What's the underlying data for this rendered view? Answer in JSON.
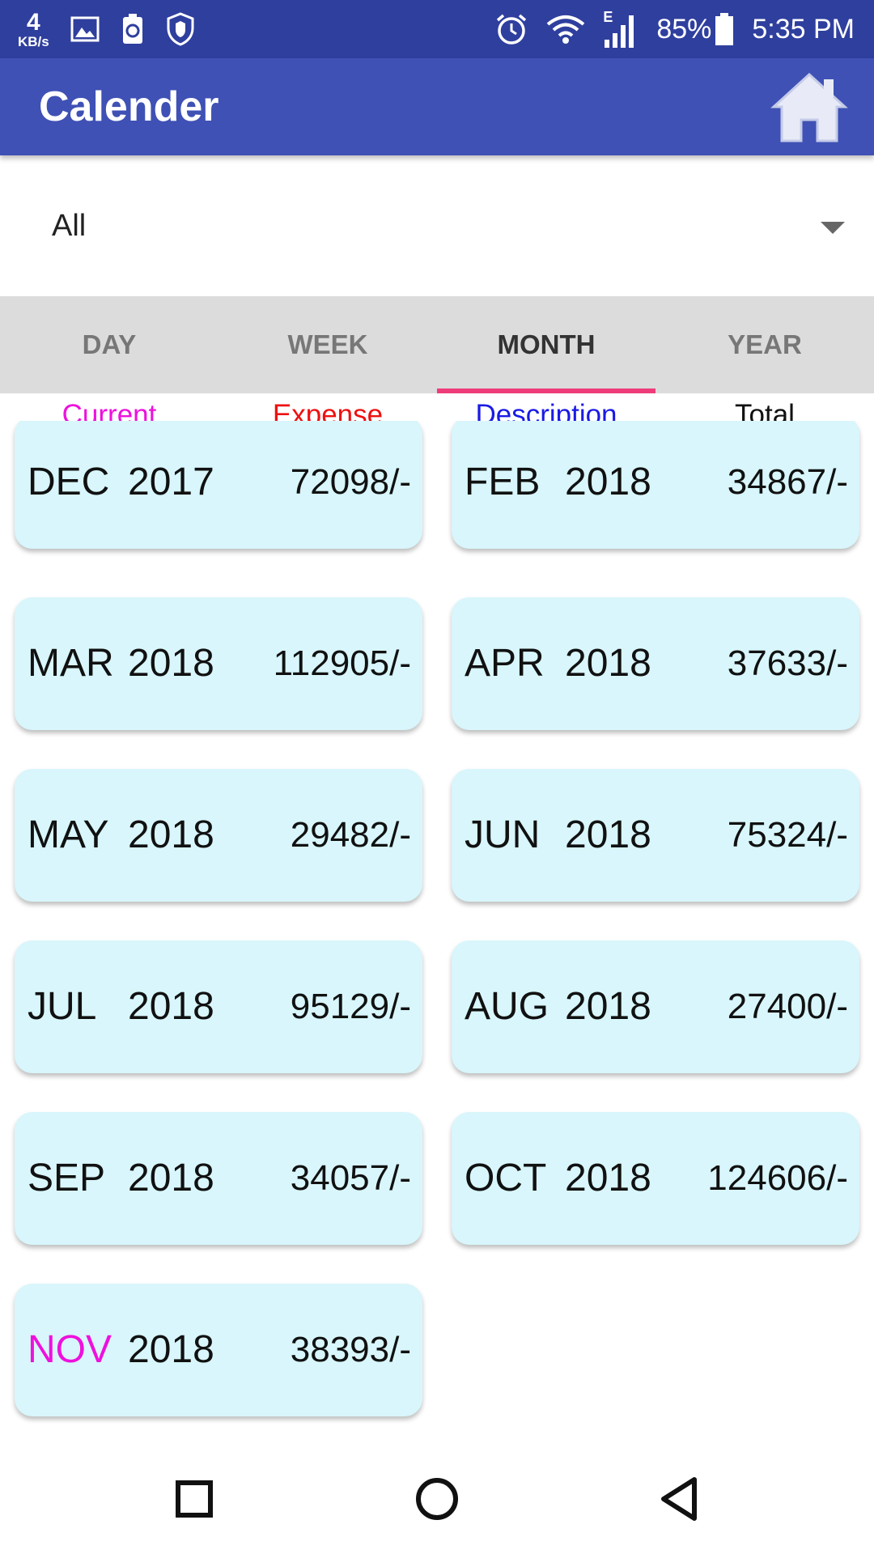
{
  "status_bar": {
    "speed_value": "4",
    "speed_unit": "KB/s",
    "network_type": "E",
    "battery": "85%",
    "time": "5:35 PM",
    "icons": [
      "image-icon",
      "battery-saver-icon",
      "shield-icon",
      "alarm-icon",
      "wifi-icon",
      "signal-icon",
      "battery-icon"
    ]
  },
  "app_bar": {
    "title": "Calender",
    "home_icon": "home-icon"
  },
  "filter": {
    "selected": "All"
  },
  "tabs": [
    {
      "label": "DAY",
      "active": false
    },
    {
      "label": "WEEK",
      "active": false
    },
    {
      "label": "MONTH",
      "active": true
    },
    {
      "label": "YEAR",
      "active": false
    }
  ],
  "legend": [
    {
      "label": "Current",
      "color": "#ee11dd"
    },
    {
      "label": "Expense",
      "color": "#ee1111"
    },
    {
      "label": "Description",
      "color": "#1a1ae6"
    },
    {
      "label": "Total",
      "color": "#111111"
    }
  ],
  "months": [
    {
      "month": "DEC",
      "year": "2017",
      "amount": "72098/-",
      "current": false
    },
    {
      "month": "FEB",
      "year": "2018",
      "amount": "34867/-",
      "current": false
    },
    {
      "month": "MAR",
      "year": "2018",
      "amount": "112905/-",
      "current": false
    },
    {
      "month": "APR",
      "year": "2018",
      "amount": "37633/-",
      "current": false
    },
    {
      "month": "MAY",
      "year": "2018",
      "amount": "29482/-",
      "current": false
    },
    {
      "month": "JUN",
      "year": "2018",
      "amount": "75324/-",
      "current": false
    },
    {
      "month": "JUL",
      "year": "2018",
      "amount": "95129/-",
      "current": false
    },
    {
      "month": "AUG",
      "year": "2018",
      "amount": "27400/-",
      "current": false
    },
    {
      "month": "SEP",
      "year": "2018",
      "amount": "34057/-",
      "current": false
    },
    {
      "month": "OCT",
      "year": "2018",
      "amount": "124606/-",
      "current": false
    },
    {
      "month": "NOV",
      "year": "2018",
      "amount": "38393/-",
      "current": true
    }
  ],
  "nav_bar": {
    "icons": [
      "recents-icon",
      "home-circle-icon",
      "back-icon"
    ]
  },
  "colors": {
    "status_bar": "#2f3f9e",
    "app_bar": "#3f51b5",
    "card": "#d8f6fb",
    "tab_indicator": "#ee3c7b",
    "current_month": "#ee11dd"
  }
}
